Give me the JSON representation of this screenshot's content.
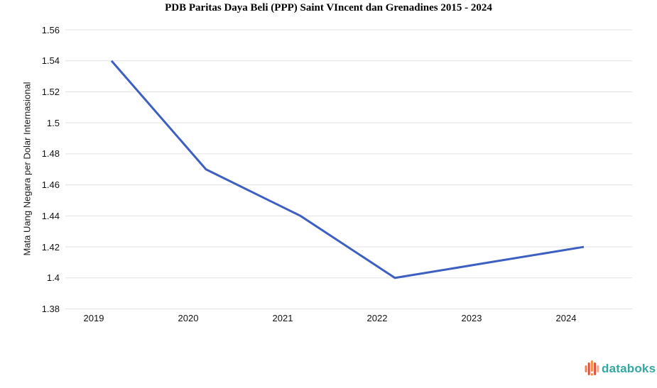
{
  "chart_data": {
    "type": "line",
    "title": "PDB Paritas Daya Beli (PPP) Saint VIncent dan Grenadines 2015 - 2024",
    "x": [
      "2019",
      "2020",
      "2021",
      "2022",
      "2023",
      "2024"
    ],
    "values": [
      1.54,
      1.47,
      1.44,
      1.4,
      1.41,
      1.42
    ],
    "xlabel": "",
    "ylabel": "Mata Uang Negara per Dolar Internasional",
    "ylim": [
      1.38,
      1.56
    ],
    "ytick_labels": [
      "1.56",
      "1.54",
      "1.52",
      "1.5",
      "1.48",
      "1.46",
      "1.44",
      "1.42",
      "1.4",
      "1.38"
    ],
    "grid": "horizontal",
    "legend": "none",
    "line_color": "#3d5fc1",
    "gridline_color": "#e3e3e3"
  },
  "branding": {
    "logo_text": "databoks",
    "logo_text_color": "#35a7a3",
    "logo_icon": "waveform-bars-icon",
    "logo_bar_colors": [
      "#ef8354",
      "#dd5144",
      "#f0923f",
      "#dd5144",
      "#f5a98c"
    ]
  }
}
